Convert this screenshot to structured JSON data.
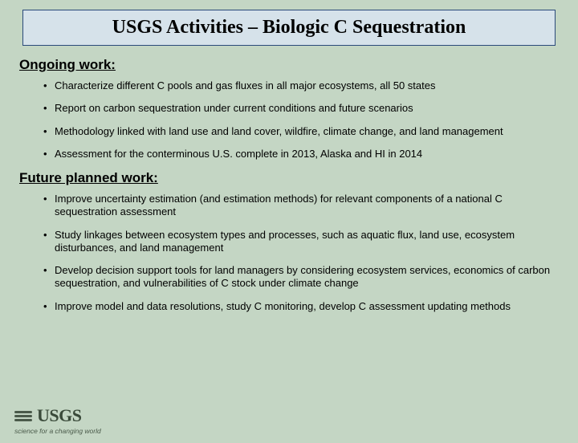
{
  "title": "USGS Activities – Biologic C Sequestration",
  "sections": [
    {
      "heading": "Ongoing work:",
      "items": [
        "Characterize different C pools and gas fluxes in all major ecosystems, all 50 states",
        "Report on carbon sequestration under current conditions and future scenarios",
        "Methodology linked with land use and land cover, wildfire, climate change, and land management",
        "Assessment for the conterminous U.S. complete in 2013, Alaska and HI in 2014"
      ]
    },
    {
      "heading": "Future planned work:",
      "items": [
        "Improve uncertainty estimation (and estimation methods) for relevant components of a national C sequestration assessment",
        "Study linkages between ecosystem types and processes, such as aquatic flux, land use, ecosystem disturbances, and land management",
        "Develop decision support tools for land managers by considering ecosystem services, economics of carbon sequestration, and vulnerabilities of C stock under climate change",
        "Improve model and data resolutions, study C monitoring, develop C assessment updating methods"
      ]
    }
  ],
  "logo": {
    "text": "USGS",
    "tagline": "science for a changing world"
  },
  "colors": {
    "background": "#c4d6c4",
    "title_box_bg": "#d6e2ea",
    "title_box_border": "#2a4a7a",
    "text": "#000000",
    "logo_color": "#3a4a3a"
  },
  "typography": {
    "title_font": "Times New Roman",
    "title_size_pt": 18,
    "heading_size_pt": 13,
    "body_size_pt": 10,
    "logo_font": "Times New Roman",
    "tagline_font": "cursive"
  }
}
